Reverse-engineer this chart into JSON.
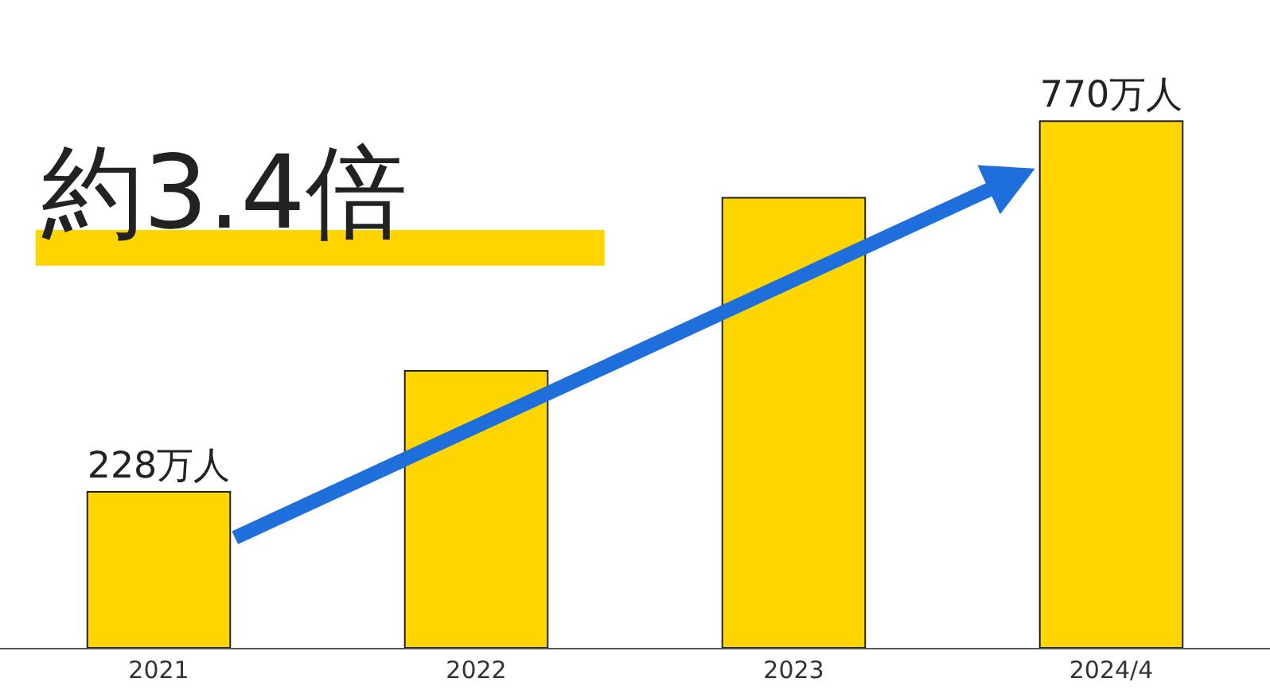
{
  "chart_data": {
    "type": "bar",
    "tick_labels": "x",
    "categories": [
      "2021",
      "2022",
      "2023",
      "2024/4"
    ],
    "values": [
      228,
      405,
      658,
      770
    ],
    "value_labels": [
      "228万人",
      null,
      null,
      "770万人"
    ],
    "color": "#ffd500",
    "annotations": [
      "約3.4倍"
    ],
    "grid": false,
    "legend": false
  }
}
